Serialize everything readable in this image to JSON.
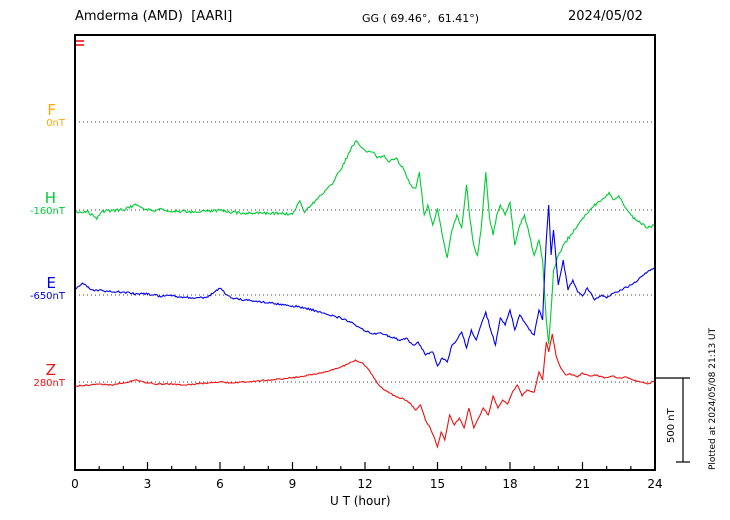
{
  "header": {
    "station": "Amderma (AMD)  [AARI]",
    "coords": "GG ( 69.46°,  61.41°)",
    "date": "2024/05/02"
  },
  "xaxis": {
    "label": "U T (hour)",
    "ticks": [
      0,
      3,
      6,
      9,
      12,
      15,
      18,
      21,
      24
    ],
    "minor_step_hours": 1
  },
  "sidebar_note": "Plotted at 2024/05/08 21:13 UT",
  "scalebar": {
    "label": "500 nT",
    "span_nT": 500
  },
  "chart_data": {
    "type": "line",
    "x_unit": "hour UT",
    "x_range": [
      0,
      24
    ],
    "grid": "dotted horizontal baseline per component",
    "components": [
      {
        "name": "F",
        "baseline_label": "0nT",
        "baseline_nT": 0,
        "color": "#FFAA00",
        "noise_nT": 0,
        "delta_nT_keypoints": []
      },
      {
        "name": "H",
        "baseline_label": "-160nT",
        "baseline_nT": -160,
        "color": "#00CC33",
        "noise_nT": 9,
        "delta_nT_keypoints": [
          [
            0,
            -12
          ],
          [
            0.5,
            -6
          ],
          [
            0.9,
            -55
          ],
          [
            1.1,
            -10
          ],
          [
            1.5,
            -3
          ],
          [
            2,
            0
          ],
          [
            2.5,
            35
          ],
          [
            2.8,
            10
          ],
          [
            3.2,
            -5
          ],
          [
            3.6,
            5
          ],
          [
            4,
            -10
          ],
          [
            4.5,
            -5
          ],
          [
            5,
            -12
          ],
          [
            5.5,
            -8
          ],
          [
            6,
            -3
          ],
          [
            6.5,
            -15
          ],
          [
            7,
            -20
          ],
          [
            7.5,
            -15
          ],
          [
            8,
            -22
          ],
          [
            8.5,
            -18
          ],
          [
            9,
            -25
          ],
          [
            9.3,
            55
          ],
          [
            9.5,
            -15
          ],
          [
            9.8,
            30
          ],
          [
            10.2,
            90
          ],
          [
            10.6,
            150
          ],
          [
            11,
            240
          ],
          [
            11.3,
            330
          ],
          [
            11.6,
            410
          ],
          [
            11.8,
            380
          ],
          [
            12,
            355
          ],
          [
            12.3,
            345
          ],
          [
            12.5,
            310
          ],
          [
            12.8,
            325
          ],
          [
            13,
            285
          ],
          [
            13.3,
            310
          ],
          [
            13.6,
            240
          ],
          [
            13.9,
            150
          ],
          [
            14.1,
            130
          ],
          [
            14.25,
            225
          ],
          [
            14.45,
            -30
          ],
          [
            14.6,
            30
          ],
          [
            14.8,
            -90
          ],
          [
            15,
            10
          ],
          [
            15.2,
            -150
          ],
          [
            15.4,
            -285
          ],
          [
            15.6,
            -120
          ],
          [
            15.8,
            -30
          ],
          [
            16,
            -105
          ],
          [
            16.2,
            150
          ],
          [
            16.35,
            -60
          ],
          [
            16.5,
            -210
          ],
          [
            16.65,
            -270
          ],
          [
            16.8,
            -120
          ],
          [
            17,
            225
          ],
          [
            17.15,
            -45
          ],
          [
            17.3,
            -150
          ],
          [
            17.45,
            -30
          ],
          [
            17.6,
            30
          ],
          [
            17.8,
            -30
          ],
          [
            18,
            45
          ],
          [
            18.2,
            -210
          ],
          [
            18.4,
            -90
          ],
          [
            18.6,
            -30
          ],
          [
            18.8,
            -150
          ],
          [
            19,
            -270
          ],
          [
            19.2,
            -180
          ],
          [
            19.35,
            -300
          ],
          [
            19.5,
            -655
          ],
          [
            19.6,
            -800
          ],
          [
            19.7,
            -595
          ],
          [
            19.8,
            -360
          ],
          [
            20,
            -270
          ],
          [
            20.2,
            -210
          ],
          [
            20.5,
            -150
          ],
          [
            20.8,
            -90
          ],
          [
            21,
            -48
          ],
          [
            21.3,
            0
          ],
          [
            21.6,
            42
          ],
          [
            21.9,
            70
          ],
          [
            22.1,
            105
          ],
          [
            22.3,
            60
          ],
          [
            22.5,
            85
          ],
          [
            22.7,
            30
          ],
          [
            23,
            -30
          ],
          [
            23.3,
            -70
          ],
          [
            23.6,
            -100
          ],
          [
            24,
            -95
          ]
        ]
      },
      {
        "name": "E",
        "baseline_label": "-650nT",
        "baseline_nT": -650,
        "color": "#0000EE",
        "noise_nT": 6,
        "delta_nT_keypoints": [
          [
            0,
            36
          ],
          [
            0.3,
            71
          ],
          [
            0.5,
            48
          ],
          [
            0.8,
            24
          ],
          [
            1,
            30
          ],
          [
            1.5,
            18
          ],
          [
            2,
            18
          ],
          [
            2.5,
            6
          ],
          [
            3,
            6
          ],
          [
            3.5,
            -6
          ],
          [
            4,
            -6
          ],
          [
            4.5,
            -12
          ],
          [
            5,
            -18
          ],
          [
            5.5,
            -12
          ],
          [
            6,
            40
          ],
          [
            6.3,
            0
          ],
          [
            6.5,
            -18
          ],
          [
            7,
            -30
          ],
          [
            7.5,
            -36
          ],
          [
            8,
            -48
          ],
          [
            8.5,
            -54
          ],
          [
            9,
            -65
          ],
          [
            9.5,
            -77
          ],
          [
            10,
            -95
          ],
          [
            10.5,
            -119
          ],
          [
            11,
            -137
          ],
          [
            11.5,
            -167
          ],
          [
            12,
            -214
          ],
          [
            12.3,
            -232
          ],
          [
            12.6,
            -226
          ],
          [
            13,
            -244
          ],
          [
            13.4,
            -268
          ],
          [
            13.7,
            -256
          ],
          [
            14,
            -298
          ],
          [
            14.2,
            -280
          ],
          [
            14.5,
            -357
          ],
          [
            14.8,
            -339
          ],
          [
            15,
            -422
          ],
          [
            15.2,
            -375
          ],
          [
            15.4,
            -399
          ],
          [
            15.6,
            -298
          ],
          [
            15.8,
            -268
          ],
          [
            16,
            -220
          ],
          [
            16.2,
            -315
          ],
          [
            16.4,
            -208
          ],
          [
            16.6,
            -268
          ],
          [
            16.8,
            -179
          ],
          [
            17,
            -101
          ],
          [
            17.2,
            -208
          ],
          [
            17.4,
            -298
          ],
          [
            17.6,
            -137
          ],
          [
            17.8,
            -179
          ],
          [
            18,
            -89
          ],
          [
            18.2,
            -208
          ],
          [
            18.4,
            -119
          ],
          [
            18.6,
            -161
          ],
          [
            18.8,
            -208
          ],
          [
            19,
            -238
          ],
          [
            19.2,
            -89
          ],
          [
            19.35,
            -149
          ],
          [
            19.5,
            327
          ],
          [
            19.6,
            536
          ],
          [
            19.7,
            238
          ],
          [
            19.8,
            387
          ],
          [
            20,
            60
          ],
          [
            20.2,
            208
          ],
          [
            20.4,
            30
          ],
          [
            20.6,
            89
          ],
          [
            20.8,
            18
          ],
          [
            21,
            -6
          ],
          [
            21.2,
            42
          ],
          [
            21.5,
            -30
          ],
          [
            21.8,
            0
          ],
          [
            22,
            -18
          ],
          [
            22.3,
            12
          ],
          [
            22.6,
            30
          ],
          [
            23,
            60
          ],
          [
            23.3,
            89
          ],
          [
            23.6,
            131
          ],
          [
            24,
            161
          ]
        ]
      },
      {
        "name": "Z",
        "baseline_label": "280nT",
        "baseline_nT": 280,
        "color": "#EE1111",
        "noise_nT": 4,
        "delta_nT_keypoints": [
          [
            0,
            -24
          ],
          [
            0.5,
            -18
          ],
          [
            1,
            -12
          ],
          [
            1.5,
            -18
          ],
          [
            2,
            -6
          ],
          [
            2.5,
            12
          ],
          [
            3,
            -6
          ],
          [
            3.5,
            -12
          ],
          [
            4,
            -12
          ],
          [
            4.5,
            -18
          ],
          [
            5,
            -12
          ],
          [
            5.5,
            -6
          ],
          [
            6,
            0
          ],
          [
            6.5,
            -6
          ],
          [
            7,
            0
          ],
          [
            7.5,
            6
          ],
          [
            8,
            12
          ],
          [
            8.5,
            18
          ],
          [
            9,
            24
          ],
          [
            9.5,
            36
          ],
          [
            10,
            48
          ],
          [
            10.5,
            65
          ],
          [
            11,
            89
          ],
          [
            11.3,
            107
          ],
          [
            11.6,
            131
          ],
          [
            11.9,
            113
          ],
          [
            12.1,
            83
          ],
          [
            12.3,
            42
          ],
          [
            12.5,
            -6
          ],
          [
            12.8,
            -48
          ],
          [
            13,
            -65
          ],
          [
            13.3,
            -89
          ],
          [
            13.6,
            -101
          ],
          [
            13.9,
            -131
          ],
          [
            14.1,
            -167
          ],
          [
            14.3,
            -137
          ],
          [
            14.5,
            -226
          ],
          [
            14.7,
            -274
          ],
          [
            14.9,
            -345
          ],
          [
            15,
            -387
          ],
          [
            15.15,
            -298
          ],
          [
            15.3,
            -345
          ],
          [
            15.5,
            -196
          ],
          [
            15.7,
            -256
          ],
          [
            15.9,
            -214
          ],
          [
            16.1,
            -274
          ],
          [
            16.3,
            -155
          ],
          [
            16.5,
            -274
          ],
          [
            16.7,
            -214
          ],
          [
            16.9,
            -155
          ],
          [
            17.1,
            -196
          ],
          [
            17.3,
            -83
          ],
          [
            17.5,
            -155
          ],
          [
            17.7,
            -107
          ],
          [
            17.9,
            -131
          ],
          [
            18.1,
            -60
          ],
          [
            18.3,
            -18
          ],
          [
            18.5,
            -83
          ],
          [
            18.7,
            -48
          ],
          [
            19,
            -60
          ],
          [
            19.2,
            60
          ],
          [
            19.35,
            12
          ],
          [
            19.5,
            238
          ],
          [
            19.6,
            179
          ],
          [
            19.75,
            286
          ],
          [
            19.9,
            161
          ],
          [
            20.1,
            83
          ],
          [
            20.3,
            42
          ],
          [
            20.5,
            48
          ],
          [
            20.8,
            30
          ],
          [
            21,
            54
          ],
          [
            21.3,
            36
          ],
          [
            21.6,
            42
          ],
          [
            21.9,
            24
          ],
          [
            22.2,
            36
          ],
          [
            22.5,
            24
          ],
          [
            22.8,
            30
          ],
          [
            23.1,
            12
          ],
          [
            23.4,
            0
          ],
          [
            23.7,
            -12
          ],
          [
            24,
            6
          ]
        ]
      }
    ]
  }
}
